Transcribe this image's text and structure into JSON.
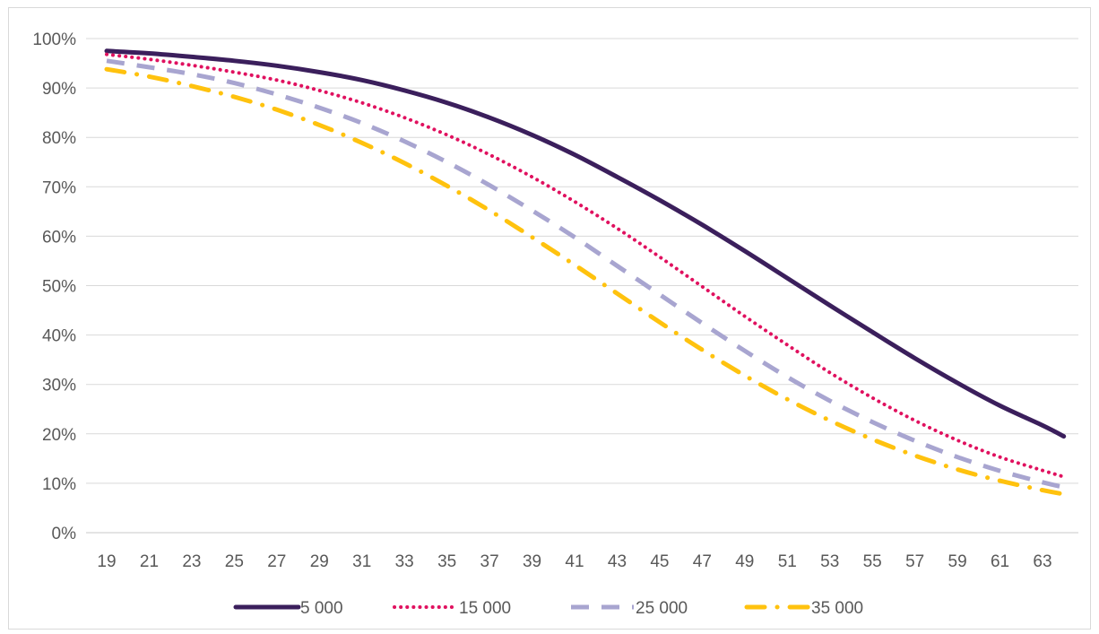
{
  "chart_data": {
    "type": "line",
    "title": "",
    "xlabel": "",
    "ylabel": "",
    "x": [
      19,
      21,
      23,
      25,
      27,
      29,
      31,
      33,
      35,
      37,
      39,
      41,
      43,
      45,
      47,
      49,
      51,
      53,
      55,
      57,
      59,
      61,
      63,
      64
    ],
    "x_tick_labels": [
      "19",
      "21",
      "23",
      "25",
      "27",
      "29",
      "31",
      "33",
      "35",
      "37",
      "39",
      "41",
      "43",
      "45",
      "47",
      "49",
      "51",
      "53",
      "55",
      "57",
      "59",
      "61",
      "63"
    ],
    "y_tick_labels": [
      "0%",
      "10%",
      "20%",
      "30%",
      "40%",
      "50%",
      "60%",
      "70%",
      "80%",
      "90%",
      "100%"
    ],
    "ylim": [
      0,
      100
    ],
    "xlim": [
      19,
      64
    ],
    "y_unit": "%",
    "grid": "horizontal",
    "legend_position": "bottom",
    "series": [
      {
        "name": "5 000",
        "color": "#3b1f5c",
        "style": "solid",
        "values": [
          97.5,
          97,
          96.3,
          95.5,
          94.5,
          93.2,
          91.6,
          89.5,
          87,
          84,
          80.5,
          76.5,
          72,
          67.3,
          62.3,
          57,
          51.5,
          46,
          40.6,
          35.3,
          30.3,
          25.7,
          21.7,
          19.5
        ]
      },
      {
        "name": "15 000",
        "color": "#e0115f",
        "style": "dotted",
        "values": [
          96.8,
          95.8,
          94.6,
          93.2,
          91.6,
          89.5,
          87,
          84,
          80.5,
          76.5,
          72,
          67,
          61.6,
          55.8,
          49.8,
          43.8,
          38,
          32.4,
          27.3,
          22.7,
          18.7,
          15.3,
          12.6,
          11.3
        ]
      },
      {
        "name": "25 000",
        "color": "#a8a5d0",
        "style": "dashed",
        "values": [
          95.5,
          94.2,
          92.8,
          91,
          88.7,
          86,
          82.9,
          79.2,
          75,
          70.3,
          65.2,
          59.8,
          54,
          48.2,
          42.4,
          36.8,
          31.5,
          26.7,
          22.4,
          18.6,
          15.3,
          12.5,
          10.2,
          9.2
        ]
      },
      {
        "name": "35 000",
        "color": "#ffc20e",
        "style": "dashdot",
        "values": [
          93.8,
          92.3,
          90.4,
          88.2,
          85.6,
          82.5,
          78.9,
          74.8,
          70.2,
          65.2,
          59.8,
          54.2,
          48.4,
          42.6,
          37,
          31.8,
          27,
          22.7,
          18.9,
          15.6,
          12.8,
          10.5,
          8.6,
          7.8
        ]
      }
    ]
  }
}
